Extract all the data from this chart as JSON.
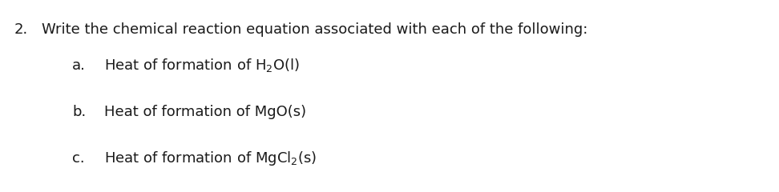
{
  "background_color": "#ffffff",
  "question_number": "2.",
  "question_text": "Write the chemical reaction equation associated with each of the following:",
  "items": [
    {
      "label": "a.",
      "text_parts": [
        {
          "text": "Heat of formation of H",
          "style": "normal"
        },
        {
          "text": "2",
          "style": "subscript"
        },
        {
          "text": "O(l)",
          "style": "normal"
        }
      ]
    },
    {
      "label": "b.",
      "text_parts": [
        {
          "text": "Heat of formation of MgO(s)",
          "style": "normal"
        }
      ]
    },
    {
      "label": "c.",
      "text_parts": [
        {
          "text": "Heat of formation of MgCl",
          "style": "normal"
        },
        {
          "text": "2",
          "style": "subscript"
        },
        {
          "text": "(s)",
          "style": "normal"
        }
      ]
    }
  ],
  "font_family": "DejaVu Sans",
  "question_fontsize": 13,
  "item_fontsize": 13,
  "text_color": "#1a1a1a",
  "fig_width": 9.72,
  "fig_height": 2.4,
  "dpi": 100
}
